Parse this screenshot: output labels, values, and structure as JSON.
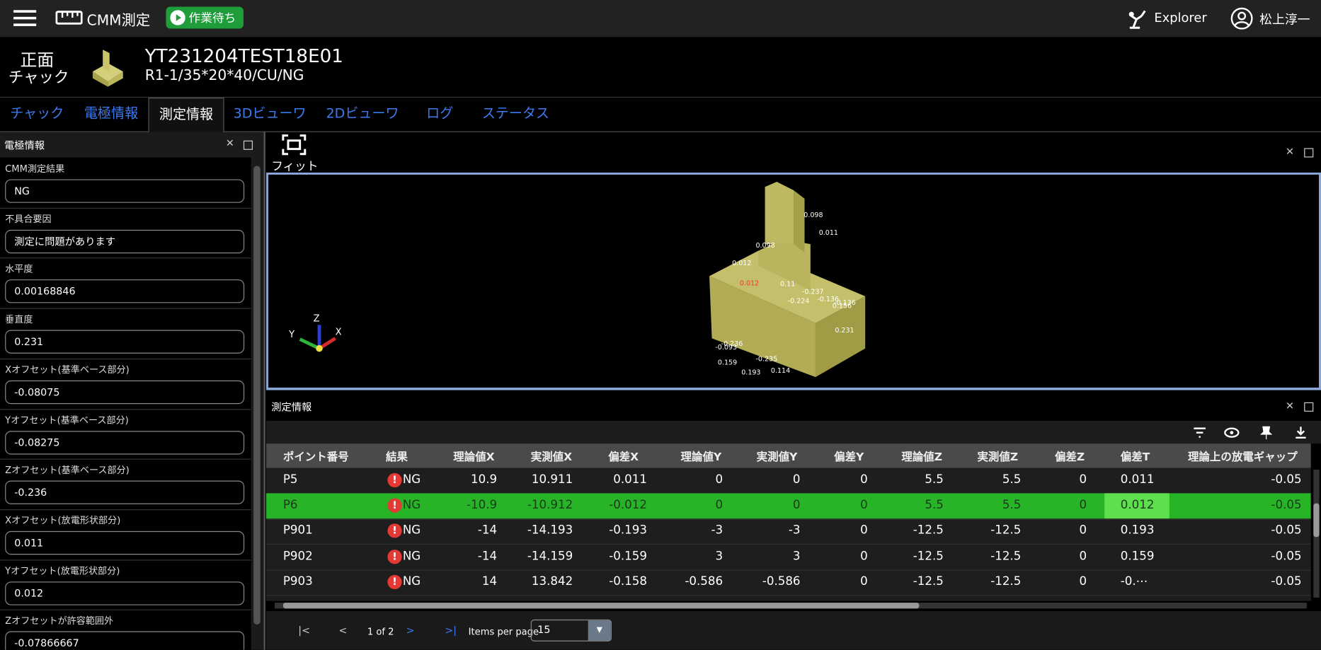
{
  "header": {
    "app_title": "CMM測定",
    "status": "作業待ち",
    "explorer": "Explorer",
    "user": "松上淳一"
  },
  "subheader": {
    "side": "正面",
    "type": "チャック",
    "code": "YT231204TEST18E01",
    "spec": "R1-1/35*20*40/CU/NG"
  },
  "tabs": [
    "チャック",
    "電極情報",
    "測定情報",
    "3Dビューワ",
    "2Dビューワ",
    "ログ",
    "ステータス"
  ],
  "active_tab": 2,
  "left_panel": {
    "title": "電極情報",
    "fields": [
      {
        "label": "CMM測定結果",
        "value": "NG"
      },
      {
        "label": "不具合要因",
        "value": "測定に問題があります"
      },
      {
        "label": "水平度",
        "value": "0.00168846"
      },
      {
        "label": "垂直度",
        "value": "0.231"
      },
      {
        "label": "Xオフセット(基準ベース部分)",
        "value": "-0.08075"
      },
      {
        "label": "Yオフセット(基準ベース部分)",
        "value": "-0.08275"
      },
      {
        "label": "Zオフセット(基準ベース部分)",
        "value": "-0.236"
      },
      {
        "label": "Xオフセット(放電形状部分)",
        "value": "0.011"
      },
      {
        "label": "Yオフセット(放電形状部分)",
        "value": "0.012"
      },
      {
        "label": "Zオフセットが許容範囲外",
        "value": "-0.07866667"
      }
    ]
  },
  "viewer": {
    "fit": "フィット",
    "axes": [
      "X",
      "Y",
      "Z"
    ],
    "labels": [
      "0.098",
      "0.011",
      "0.098",
      "0.012",
      "0.012",
      "0.11",
      "-0.237",
      "-0.224",
      "-0.136",
      "-0.136",
      "0.156",
      "0.231",
      "-0.236",
      "-0.093",
      "0.159",
      "-0.235",
      "0.193",
      "0.114"
    ]
  },
  "table": {
    "title": "測定情報",
    "columns": [
      "ポイント番号",
      "結果",
      "理論値X",
      "実測値X",
      "偏差X",
      "理論値Y",
      "実測値Y",
      "偏差Y",
      "理論値Z",
      "実測値Z",
      "偏差Z",
      "偏差T",
      "理論上の放電ギャップ"
    ],
    "rows": [
      [
        "P5",
        "NG",
        "10.9",
        "10.911",
        "0.011",
        "0",
        "0",
        "0",
        "5.5",
        "5.5",
        "0",
        "0.011",
        "-0.05"
      ],
      [
        "P6",
        "NG",
        "-10.9",
        "-10.912",
        "-0.012",
        "0",
        "0",
        "0",
        "5.5",
        "5.5",
        "0",
        "0.012",
        "-0.05"
      ],
      [
        "P901",
        "NG",
        "-14",
        "-14.193",
        "-0.193",
        "-3",
        "-3",
        "0",
        "-12.5",
        "-12.5",
        "0",
        "0.193",
        "-0.05"
      ],
      [
        "P902",
        "NG",
        "-14",
        "-14.159",
        "-0.159",
        "3",
        "3",
        "0",
        "-12.5",
        "-12.5",
        "0",
        "0.159",
        "-0.05"
      ],
      [
        "P903",
        "NG",
        "14",
        "13.842",
        "-0.158",
        "-0.586",
        "-0.586",
        "0",
        "-12.5",
        "-12.5",
        "0",
        "-0.⋯",
        "-0.05"
      ]
    ],
    "selected_row": 1
  },
  "pagination": {
    "range": "1 of 2",
    "items_label": "Items per page",
    "items": "15"
  }
}
